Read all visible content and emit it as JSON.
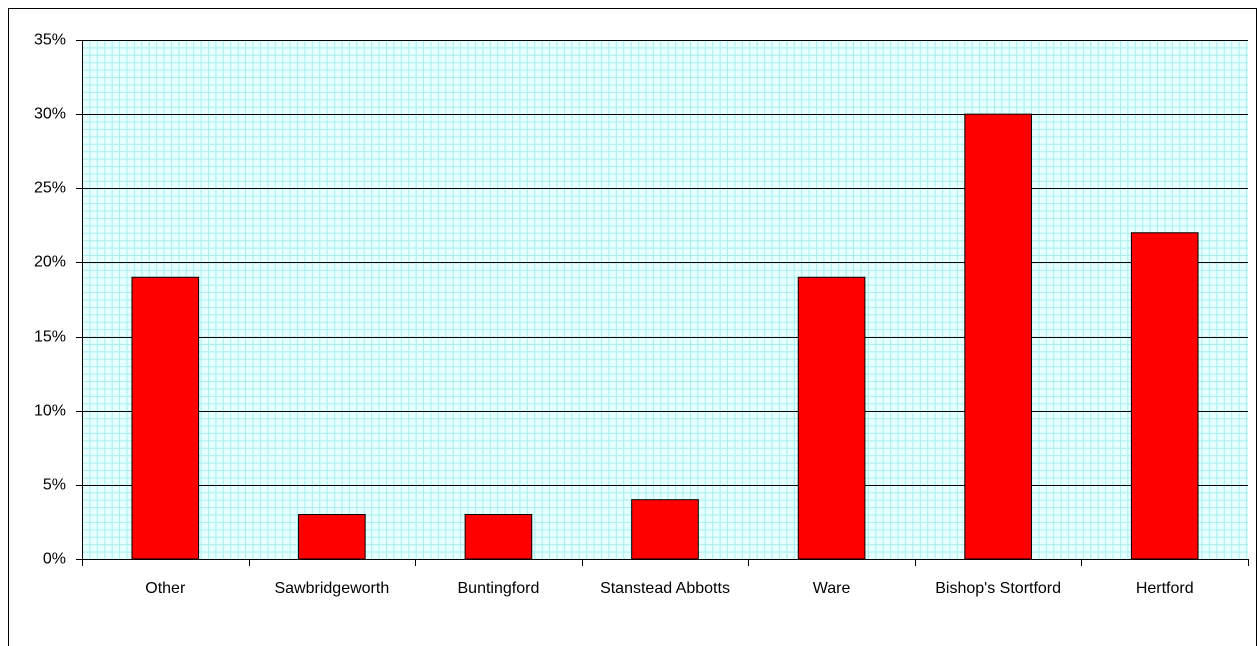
{
  "chart_data": {
    "type": "bar",
    "categories": [
      "Other",
      "Sawbridgeworth",
      "Buntingford",
      "Stanstead Abbotts",
      "Ware",
      "Bishop's Stortford",
      "Hertford"
    ],
    "values": [
      19,
      3,
      3,
      4,
      19,
      30,
      22
    ],
    "color": "#ff0000",
    "ylim": [
      0,
      35
    ],
    "yticks": [
      {
        "value": 0,
        "label": "0%"
      },
      {
        "value": 5,
        "label": "5%"
      },
      {
        "value": 10,
        "label": "10%"
      },
      {
        "value": 15,
        "label": "15%"
      },
      {
        "value": 20,
        "label": "20%"
      },
      {
        "value": 25,
        "label": "25%"
      },
      {
        "value": 30,
        "label": "30%"
      },
      {
        "value": 35,
        "label": "35%"
      }
    ],
    "grid": true
  }
}
